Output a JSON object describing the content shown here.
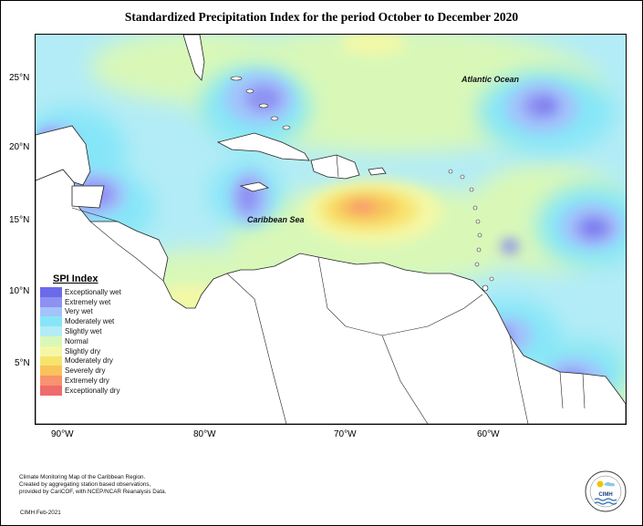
{
  "title": "Standardized Precipitation Index for the period October to December 2020",
  "map": {
    "lat_labels": [
      "25°N",
      "20°N",
      "15°N",
      "10°N",
      "5°N"
    ],
    "lon_labels": [
      "90°W",
      "80°W",
      "70°W",
      "60°W"
    ],
    "place_labels": {
      "ocean": "Atlantic Ocean",
      "sea": "Caribbean Sea"
    },
    "extent": {
      "lon": [
        -92,
        -50
      ],
      "lat": [
        1.5,
        28
      ]
    }
  },
  "legend": {
    "title": "SPI Index",
    "items": [
      {
        "label": "Exceptionally wet",
        "color": "#6b6bea"
      },
      {
        "label": "Extremely wet",
        "color": "#8e90f2"
      },
      {
        "label": "Very wet",
        "color": "#a2c4fb"
      },
      {
        "label": "Moderately wet",
        "color": "#86e6f8"
      },
      {
        "label": "Slightly wet",
        "color": "#b3ecf6"
      },
      {
        "label": "Normal",
        "color": "#d9f8b8"
      },
      {
        "label": "Slightly dry",
        "color": "#f4f8a6"
      },
      {
        "label": "Moderately dry",
        "color": "#f8e36d"
      },
      {
        "label": "Severely dry",
        "color": "#f8c35a"
      },
      {
        "label": "Extremely dry",
        "color": "#f8926f"
      },
      {
        "label": "Exceptionally dry",
        "color": "#f06b6b"
      }
    ]
  },
  "credit": {
    "lines": [
      "Climate Monitoring Map of the Caribbean Region.",
      "Created by aggregating station based observations,",
      "provided by CariCOF, with NCEP/NCAR Reanalysis Data."
    ],
    "stamp": "CIMH Feb-2021"
  },
  "logo": {
    "text": "CIMH"
  }
}
